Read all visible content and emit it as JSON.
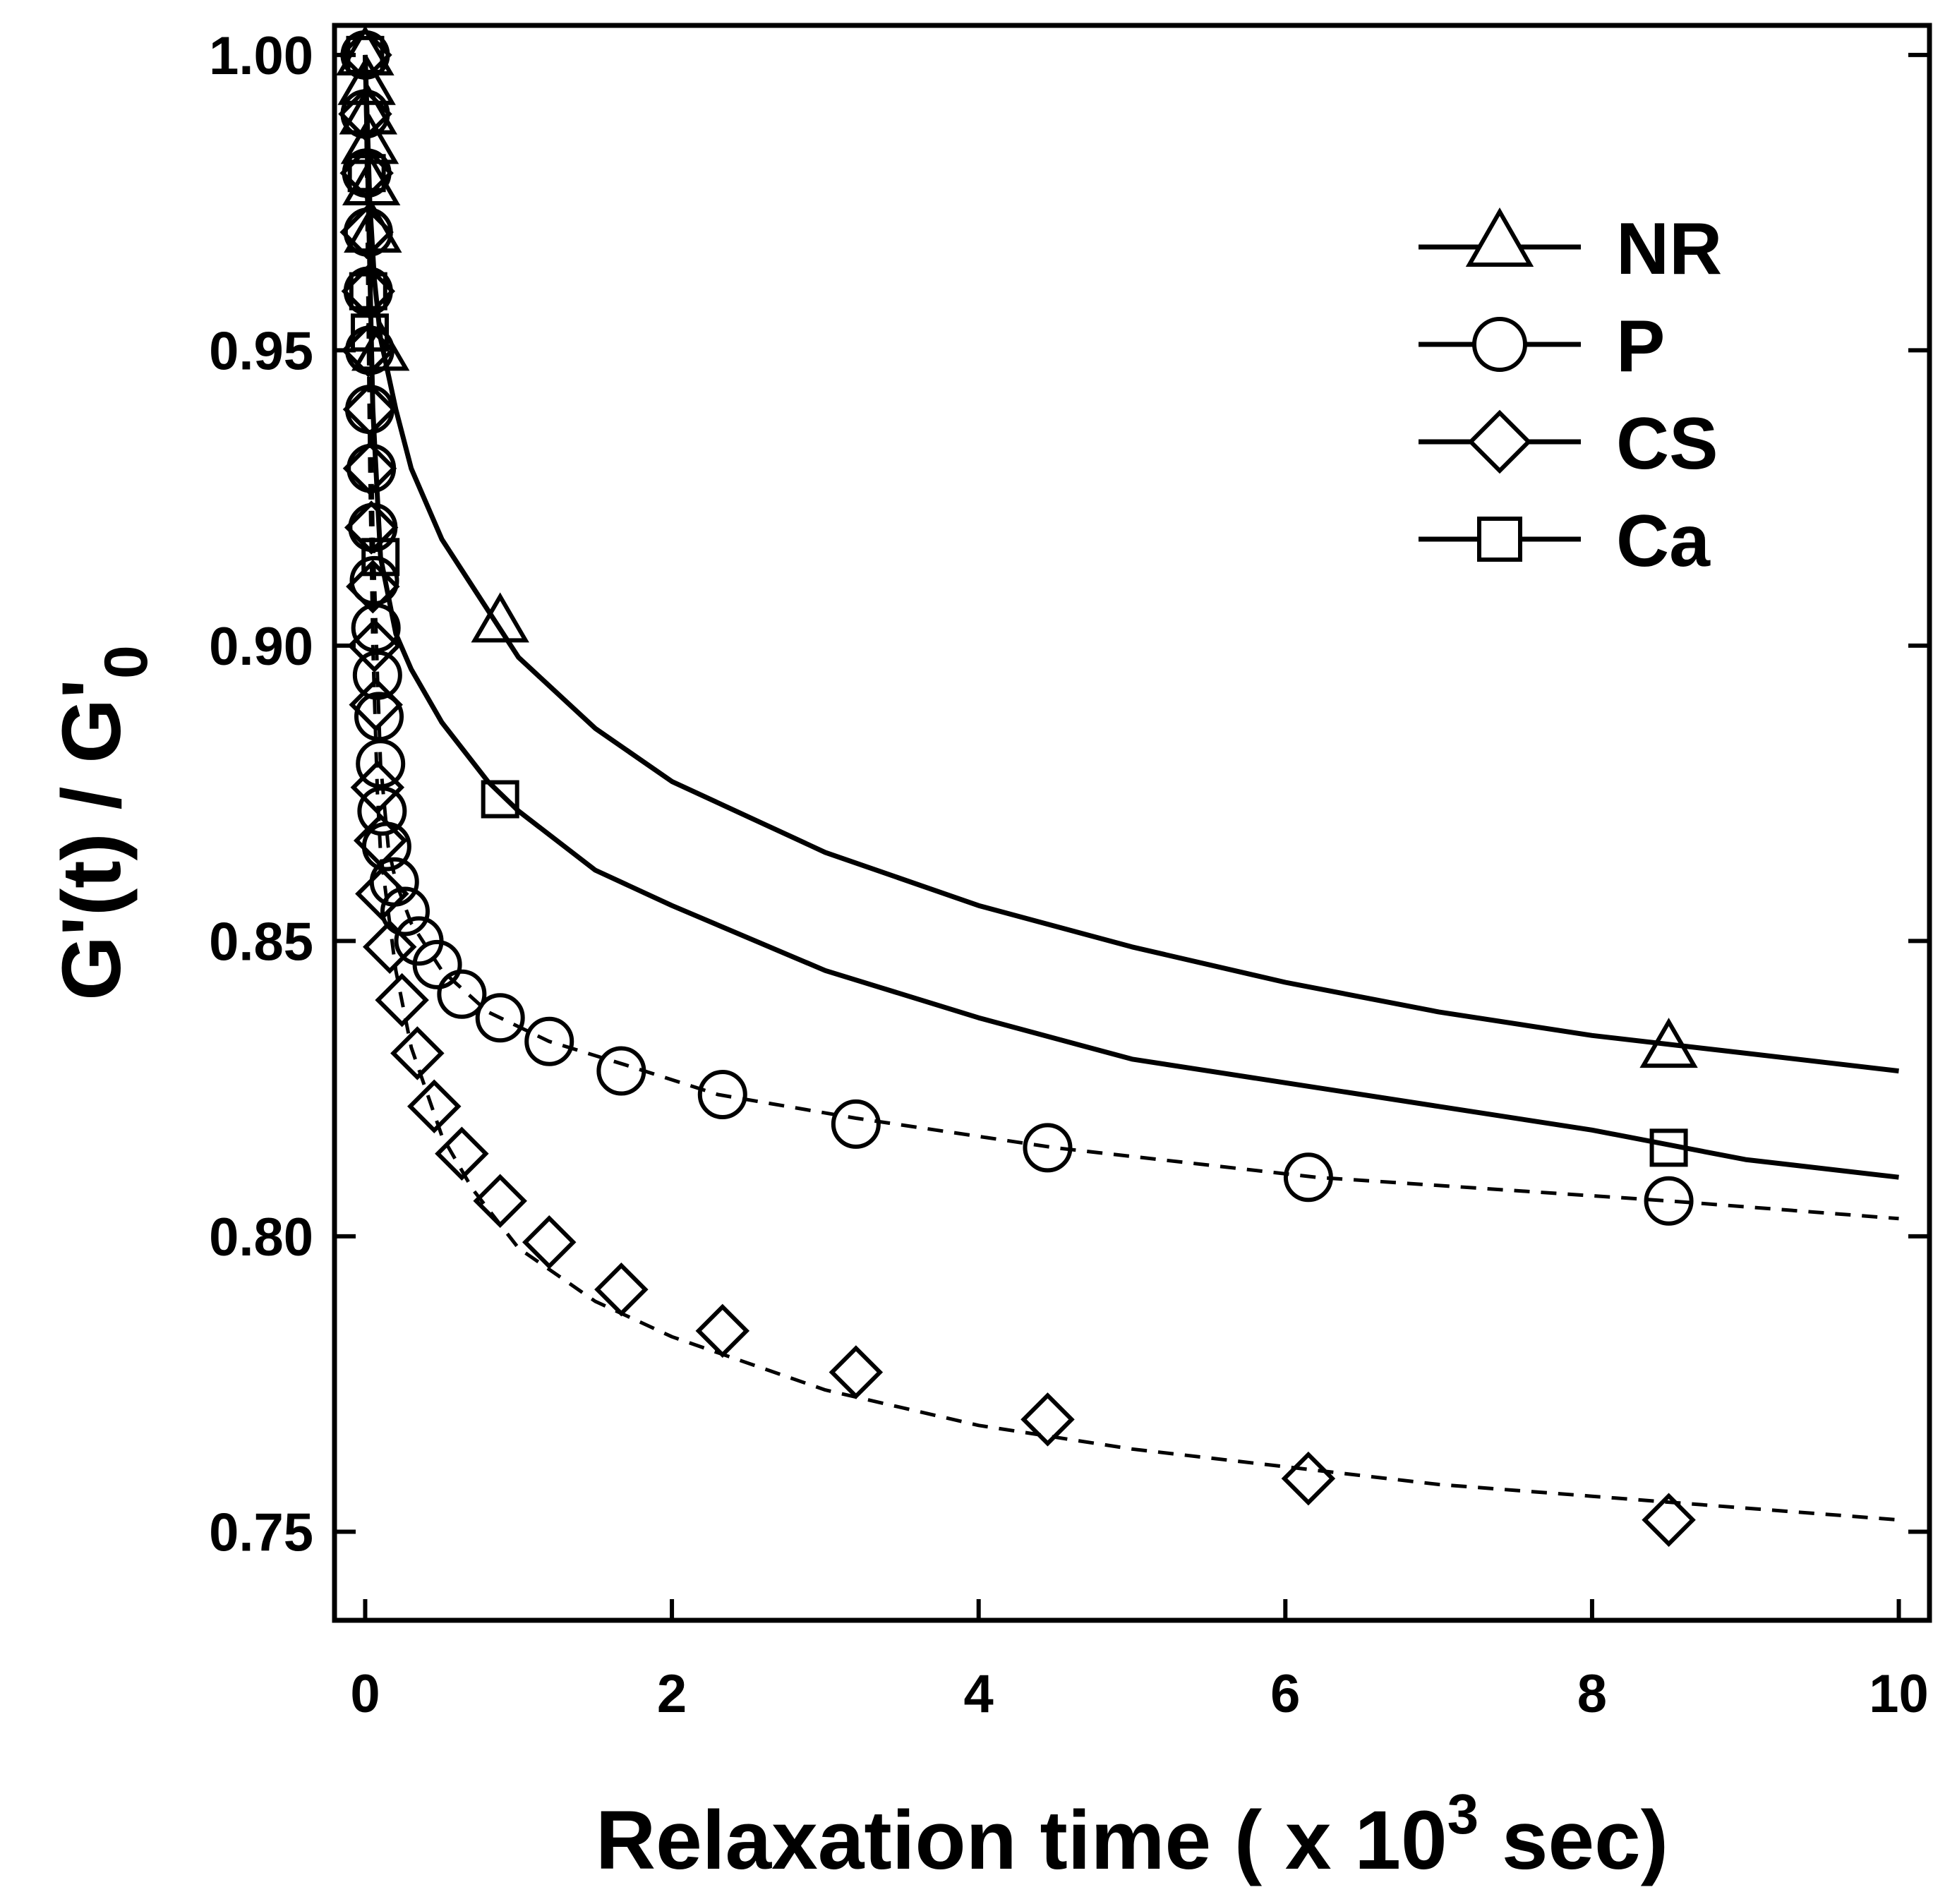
{
  "chart_data": {
    "type": "scatter",
    "title": "",
    "xlabel": {
      "prefix": "Relaxation time ( x 10",
      "sup": "3",
      "suffix": " sec)"
    },
    "ylabel": {
      "prefix": "G'(t) / G'",
      "sub": "0"
    },
    "xlim": [
      -0.2,
      10.2
    ],
    "ylim": [
      0.735,
      1.005
    ],
    "xticks": [
      0,
      2,
      4,
      6,
      8,
      10
    ],
    "xtick_labels": [
      "0",
      "2",
      "4",
      "6",
      "8",
      "10"
    ],
    "yticks": [
      0.75,
      0.8,
      0.85,
      0.9,
      0.95,
      1.0
    ],
    "ytick_labels": [
      "0.75",
      "0.80",
      "0.85",
      "0.90",
      "0.95",
      "1.00"
    ],
    "grid": false,
    "legend_position": "top-right",
    "colors": {
      "ink": "#000000",
      "background": "#ffffff"
    },
    "series": [
      {
        "name": "NR",
        "marker": "triangle",
        "line": "solid",
        "points": [
          [
            0.0,
            1.0
          ],
          [
            0.01,
            0.995
          ],
          [
            0.02,
            0.99
          ],
          [
            0.03,
            0.985
          ],
          [
            0.04,
            0.978
          ],
          [
            0.05,
            0.97
          ],
          [
            0.1,
            0.95
          ],
          [
            0.88,
            0.904
          ],
          [
            8.5,
            0.832
          ]
        ],
        "fit": [
          [
            0.0,
            1.0
          ],
          [
            0.03,
            0.975
          ],
          [
            0.06,
            0.962
          ],
          [
            0.1,
            0.952
          ],
          [
            0.2,
            0.94
          ],
          [
            0.3,
            0.93
          ],
          [
            0.5,
            0.918
          ],
          [
            0.7,
            0.91
          ],
          [
            1.0,
            0.898
          ],
          [
            1.5,
            0.886
          ],
          [
            2.0,
            0.877
          ],
          [
            3.0,
            0.865
          ],
          [
            4.0,
            0.856
          ],
          [
            5.0,
            0.849
          ],
          [
            6.0,
            0.843
          ],
          [
            7.0,
            0.838
          ],
          [
            8.0,
            0.834
          ],
          [
            9.0,
            0.831
          ],
          [
            10.0,
            0.828
          ]
        ]
      },
      {
        "name": "P",
        "marker": "circle",
        "line": "dashed",
        "points": [
          [
            0.0,
            1.0
          ],
          [
            0.0,
            0.99
          ],
          [
            0.01,
            0.98
          ],
          [
            0.02,
            0.97
          ],
          [
            0.02,
            0.96
          ],
          [
            0.03,
            0.95
          ],
          [
            0.03,
            0.94
          ],
          [
            0.04,
            0.93
          ],
          [
            0.05,
            0.92
          ],
          [
            0.06,
            0.911
          ],
          [
            0.07,
            0.903
          ],
          [
            0.08,
            0.895
          ],
          [
            0.09,
            0.888
          ],
          [
            0.1,
            0.88
          ],
          [
            0.11,
            0.872
          ],
          [
            0.14,
            0.866
          ],
          [
            0.19,
            0.86
          ],
          [
            0.26,
            0.855
          ],
          [
            0.35,
            0.85
          ],
          [
            0.47,
            0.846
          ],
          [
            0.63,
            0.841
          ],
          [
            0.88,
            0.837
          ],
          [
            1.2,
            0.833
          ],
          [
            1.67,
            0.828
          ],
          [
            2.33,
            0.824
          ],
          [
            3.2,
            0.819
          ],
          [
            4.45,
            0.815
          ],
          [
            6.15,
            0.81
          ],
          [
            8.5,
            0.806
          ]
        ],
        "fit": [
          [
            0.0,
            1.0
          ],
          [
            0.03,
            0.95
          ],
          [
            0.05,
            0.92
          ],
          [
            0.08,
            0.895
          ],
          [
            0.1,
            0.88
          ],
          [
            0.15,
            0.866
          ],
          [
            0.2,
            0.86
          ],
          [
            0.3,
            0.853
          ],
          [
            0.5,
            0.845
          ],
          [
            0.8,
            0.838
          ],
          [
            1.2,
            0.833
          ],
          [
            1.7,
            0.829
          ],
          [
            2.3,
            0.824
          ],
          [
            3.2,
            0.82
          ],
          [
            4.5,
            0.815
          ],
          [
            6.2,
            0.81
          ],
          [
            8.5,
            0.806
          ],
          [
            10.0,
            0.803
          ]
        ]
      },
      {
        "name": "CS",
        "marker": "diamond",
        "line": "dashed",
        "points": [
          [
            0.0,
            1.0
          ],
          [
            0.0,
            0.99
          ],
          [
            0.01,
            0.98
          ],
          [
            0.01,
            0.97
          ],
          [
            0.02,
            0.96
          ],
          [
            0.02,
            0.95
          ],
          [
            0.03,
            0.94
          ],
          [
            0.03,
            0.93
          ],
          [
            0.04,
            0.92
          ],
          [
            0.05,
            0.91
          ],
          [
            0.06,
            0.9
          ],
          [
            0.07,
            0.89
          ],
          [
            0.08,
            0.876
          ],
          [
            0.1,
            0.867
          ],
          [
            0.11,
            0.858
          ],
          [
            0.16,
            0.849
          ],
          [
            0.24,
            0.84
          ],
          [
            0.34,
            0.831
          ],
          [
            0.45,
            0.822
          ],
          [
            0.63,
            0.814
          ],
          [
            0.88,
            0.806
          ],
          [
            1.2,
            0.799
          ],
          [
            1.67,
            0.791
          ],
          [
            2.33,
            0.784
          ],
          [
            3.2,
            0.777
          ],
          [
            4.45,
            0.769
          ],
          [
            6.15,
            0.759
          ],
          [
            8.5,
            0.752
          ]
        ],
        "fit": [
          [
            0.0,
            1.0
          ],
          [
            0.03,
            0.93
          ],
          [
            0.05,
            0.9
          ],
          [
            0.08,
            0.875
          ],
          [
            0.1,
            0.865
          ],
          [
            0.2,
            0.845
          ],
          [
            0.3,
            0.832
          ],
          [
            0.5,
            0.817
          ],
          [
            0.7,
            0.808
          ],
          [
            1.0,
            0.798
          ],
          [
            1.5,
            0.789
          ],
          [
            2.0,
            0.783
          ],
          [
            3.0,
            0.774
          ],
          [
            4.0,
            0.768
          ],
          [
            5.0,
            0.764
          ],
          [
            6.0,
            0.761
          ],
          [
            7.0,
            0.758
          ],
          [
            8.0,
            0.756
          ],
          [
            9.0,
            0.754
          ],
          [
            10.0,
            0.752
          ]
        ]
      },
      {
        "name": "Ca",
        "marker": "square",
        "line": "solid",
        "points": [
          [
            0.0,
            1.0
          ],
          [
            0.01,
            0.98
          ],
          [
            0.02,
            0.96
          ],
          [
            0.03,
            0.953
          ],
          [
            0.1,
            0.915
          ],
          [
            0.88,
            0.874
          ],
          [
            8.5,
            0.815
          ]
        ],
        "fit": [
          [
            0.0,
            1.0
          ],
          [
            0.05,
            0.94
          ],
          [
            0.1,
            0.915
          ],
          [
            0.2,
            0.902
          ],
          [
            0.3,
            0.896
          ],
          [
            0.5,
            0.887
          ],
          [
            0.8,
            0.877
          ],
          [
            1.0,
            0.872
          ],
          [
            1.5,
            0.862
          ],
          [
            2.0,
            0.856
          ],
          [
            3.0,
            0.845
          ],
          [
            4.0,
            0.837
          ],
          [
            5.0,
            0.83
          ],
          [
            6.0,
            0.826
          ],
          [
            7.0,
            0.822
          ],
          [
            8.0,
            0.818
          ],
          [
            9.0,
            0.813
          ],
          [
            10.0,
            0.81
          ]
        ]
      }
    ]
  }
}
